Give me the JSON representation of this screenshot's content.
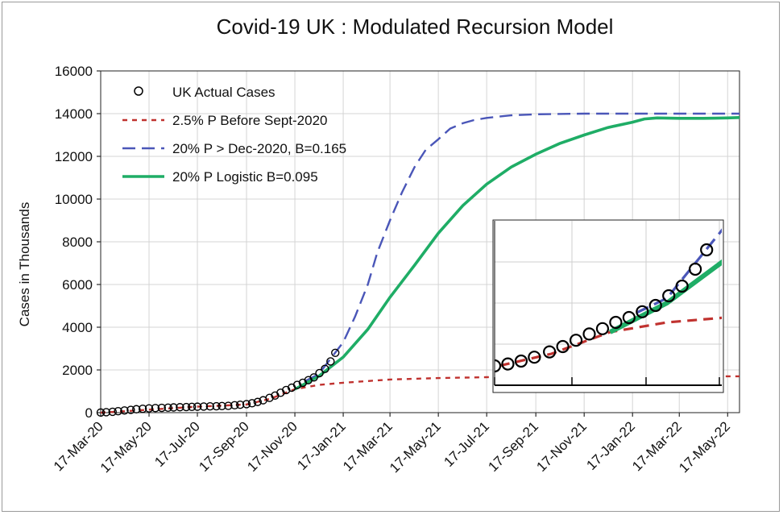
{
  "chart_data": {
    "type": "line",
    "title": "Covid-19 UK : Modulated Recursion Model",
    "ylabel": "Cases in Thousands",
    "xlabel": "",
    "ylim": [
      0,
      16000
    ],
    "yticks": [
      0,
      2000,
      4000,
      6000,
      8000,
      10000,
      12000,
      14000,
      16000
    ],
    "xtick_labels": [
      "17-Mar-20",
      "17-May-20",
      "17-Jul-20",
      "17-Sep-20",
      "17-Nov-20",
      "17-Jan-21",
      "17-Mar-21",
      "17-May-21",
      "17-Jul-21",
      "17-Sep-21",
      "17-Nov-21",
      "17-Jan-22",
      "17-Mar-22",
      "17-May-22"
    ],
    "grid": true,
    "legend_position": "top-left",
    "series": [
      {
        "name": "UK Actual Cases",
        "style": "circles",
        "color": "#000000",
        "x": [
          "17-Mar-20",
          "24-Mar-20",
          "1-Apr-20",
          "8-Apr-20",
          "16-Apr-20",
          "24-Apr-20",
          "1-May-20",
          "9-May-20",
          "17-May-20",
          "25-May-20",
          "2-Jun-20",
          "10-Jun-20",
          "17-Jun-20",
          "25-Jun-20",
          "3-Jul-20",
          "10-Jul-20",
          "17-Jul-20",
          "25-Jul-20",
          "2-Aug-20",
          "10-Aug-20",
          "17-Aug-20",
          "25-Aug-20",
          "2-Sep-20",
          "9-Sep-20",
          "17-Sep-20",
          "24-Sep-20",
          "1-Oct-20",
          "8-Oct-20",
          "16-Oct-20",
          "23-Oct-20",
          "30-Oct-20",
          "6-Nov-20",
          "13-Nov-20",
          "20-Nov-20",
          "27-Nov-20",
          "4-Dec-20",
          "11-Dec-20",
          "18-Dec-20",
          "25-Dec-20",
          "1-Jan-21",
          "7-Jan-21"
        ],
        "y": [
          5,
          20,
          40,
          70,
          100,
          130,
          160,
          180,
          200,
          215,
          225,
          235,
          245,
          255,
          262,
          270,
          278,
          285,
          293,
          300,
          310,
          320,
          345,
          370,
          400,
          440,
          500,
          580,
          690,
          800,
          930,
          1060,
          1170,
          1300,
          1400,
          1520,
          1650,
          1850,
          2050,
          2400,
          2800
        ]
      },
      {
        "name": "2.5% P Before Sept-2020",
        "style": "short-dash",
        "color": "#c0322f",
        "x": [
          "17-Mar-20",
          "17-Jul-20",
          "17-Sep-20",
          "17-Oct-20",
          "17-Nov-20",
          "17-Dec-20",
          "17-Jan-21",
          "17-Mar-21",
          "17-May-21",
          "17-Jul-21",
          "17-Sep-21",
          "17-Jan-22",
          "17-May-22",
          "1-Jun-22"
        ],
        "y": [
          0,
          280,
          380,
          650,
          1100,
          1300,
          1400,
          1550,
          1620,
          1660,
          1680,
          1695,
          1700,
          1700
        ]
      },
      {
        "name": "20% P > Dec-2020, B=0.165",
        "style": "long-dash",
        "color": "#4a56b8",
        "x": [
          "1-Dec-20",
          "17-Dec-20",
          "17-Jan-21",
          "1-Feb-21",
          "17-Feb-21",
          "1-Mar-21",
          "17-Mar-21",
          "1-Apr-21",
          "17-Apr-21",
          "1-May-21",
          "17-May-21",
          "1-Jun-21",
          "17-Jun-21",
          "1-Jul-21",
          "17-Jul-21",
          "17-Aug-21",
          "17-Sep-21",
          "17-Nov-21",
          "17-Mar-22",
          "1-Jun-22"
        ],
        "y": [
          1500,
          1800,
          3300,
          4500,
          6000,
          7500,
          9000,
          10300,
          11500,
          12300,
          12800,
          13300,
          13550,
          13700,
          13800,
          13920,
          13970,
          14000,
          14000,
          14000
        ]
      },
      {
        "name": "20% P Logistic B=0.095",
        "style": "solid",
        "color": "#1fad66",
        "x": [
          "17-Nov-20",
          "17-Dec-20",
          "17-Jan-21",
          "17-Feb-21",
          "17-Mar-21",
          "17-Apr-21",
          "17-May-21",
          "17-Jun-21",
          "17-Jul-21",
          "17-Aug-21",
          "17-Sep-21",
          "17-Oct-21",
          "17-Nov-21",
          "17-Dec-21",
          "17-Jan-22",
          "1-Feb-22",
          "17-Feb-22",
          "17-Mar-22",
          "17-Apr-22",
          "17-May-22",
          "1-Jun-22"
        ],
        "y": [
          1100,
          1700,
          2600,
          3900,
          5400,
          6900,
          8400,
          9700,
          10700,
          11500,
          12100,
          12600,
          13000,
          13350,
          13600,
          13750,
          13800,
          13780,
          13780,
          13800,
          13820
        ]
      }
    ],
    "inset": {
      "description_free": true,
      "legend": false
    }
  }
}
